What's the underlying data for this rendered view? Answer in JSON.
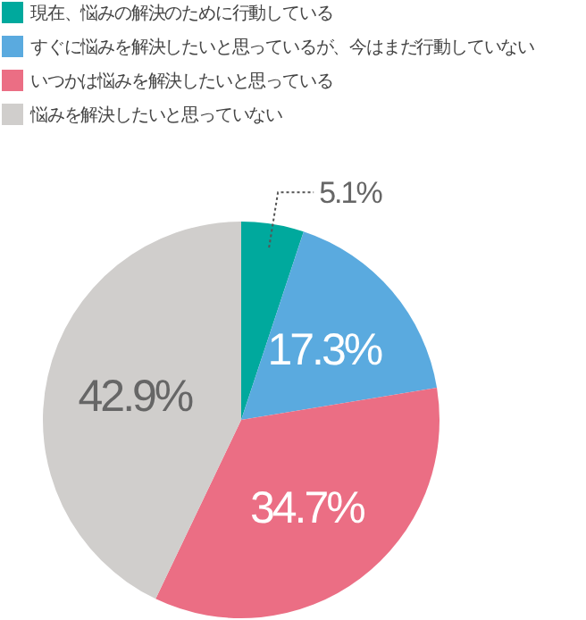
{
  "chart_data": {
    "type": "pie",
    "categories": [
      "現在、悩みの解決のために行動している",
      "すぐに悩みを解決したいと思っているが、今はまだ行動していない",
      "いつかは悩みを解決したいと思っている",
      "悩みを解決したいと思っていない"
    ],
    "values": [
      5.1,
      17.3,
      34.7,
      42.9
    ],
    "colors": [
      "#00a99d",
      "#5aaadf",
      "#eb6e84",
      "#d0cecc"
    ],
    "value_labels": [
      "5.1%",
      "17.3%",
      "34.7%",
      "42.9%"
    ],
    "legend": "top"
  }
}
